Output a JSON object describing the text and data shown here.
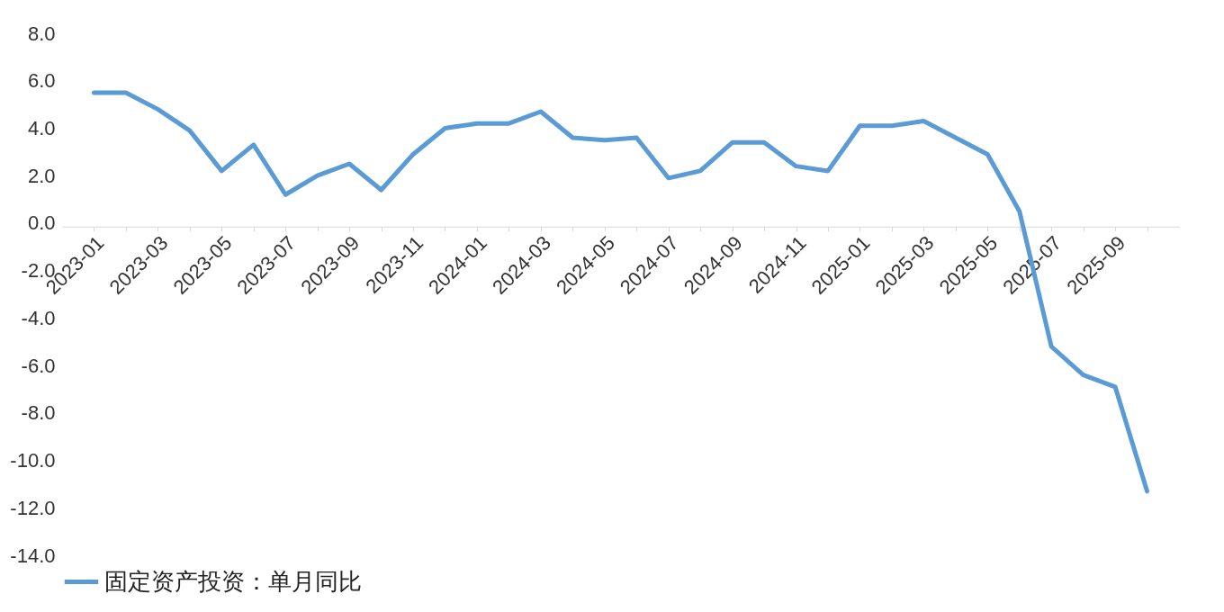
{
  "chart_data": {
    "type": "line",
    "categories": [
      "2023-01",
      null,
      "2023-03",
      null,
      "2023-05",
      null,
      "2023-07",
      null,
      "2023-09",
      null,
      "2023-11",
      null,
      "2024-01",
      null,
      "2024-03",
      null,
      "2024-05",
      null,
      "2024-07",
      null,
      "2024-09",
      null,
      "2024-11",
      null,
      "2025-01",
      null,
      "2025-03",
      null,
      "2025-05",
      null,
      "2025-07",
      null,
      "2025-09",
      null
    ],
    "series": [
      {
        "name": "固定资产投资：单月同比",
        "color": "#5b9bd5",
        "values": [
          5.5,
          5.5,
          4.8,
          3.9,
          2.2,
          3.3,
          1.2,
          2.0,
          2.5,
          1.4,
          2.9,
          4.0,
          4.2,
          4.2,
          4.7,
          3.6,
          3.5,
          3.6,
          1.9,
          2.2,
          3.4,
          3.4,
          2.4,
          2.2,
          4.1,
          4.1,
          4.3,
          3.6,
          2.9,
          0.5,
          -5.2,
          -6.4,
          -6.9,
          -11.3
        ]
      }
    ],
    "ylim": [
      -14,
      8
    ],
    "yticks": [
      {
        "value": 8,
        "label": "8.0"
      },
      {
        "value": 6,
        "label": "6.0"
      },
      {
        "value": 4,
        "label": "4.0"
      },
      {
        "value": 2,
        "label": "2.0"
      },
      {
        "value": 0,
        "label": "0.0"
      },
      {
        "value": -2,
        "label": "-2.0"
      },
      {
        "value": -4,
        "label": "-4.0"
      },
      {
        "value": -6,
        "label": "-6.0"
      },
      {
        "value": -8,
        "label": "-8.0"
      },
      {
        "value": -10,
        "label": "-10.0"
      },
      {
        "value": -12,
        "label": "-12.0"
      },
      {
        "value": -14,
        "label": "-14.0"
      }
    ],
    "grid": false,
    "legend": "bottom",
    "marker": "none",
    "line_style": "solid"
  }
}
